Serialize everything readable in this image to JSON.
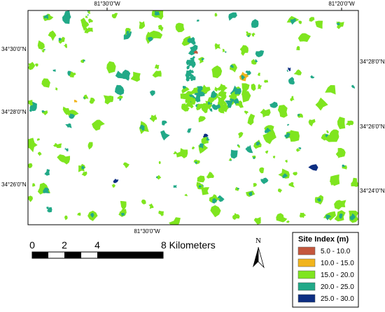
{
  "map": {
    "top_labels": [
      "81°30'0\"W",
      "81°20'0\"W"
    ],
    "left_labels": [
      "34°30'0\"N",
      "34°28'0\"N",
      "34°26'0\"N"
    ],
    "right_labels": [
      "34°28'0\"N",
      "34°26'0\"N",
      "34°24'0\"N"
    ],
    "bottom_label": "81°30'0\"W"
  },
  "scale_bar": {
    "labels": [
      "0",
      "2",
      "4",
      "8 Kilometers"
    ]
  },
  "north_arrow": {
    "label": "N"
  },
  "legend": {
    "title": "Site Index (m)",
    "items": [
      {
        "label": "5.0 - 10.0",
        "color": "#c4573d"
      },
      {
        "label": "10.0 - 15.0",
        "color": "#f1b41c"
      },
      {
        "label": "15.0 - 20.0",
        "color": "#7fe51f"
      },
      {
        "label": "20.0 - 25.0",
        "color": "#21a988"
      },
      {
        "label": "25.0 - 30.0",
        "color": "#0d2e82"
      }
    ]
  }
}
